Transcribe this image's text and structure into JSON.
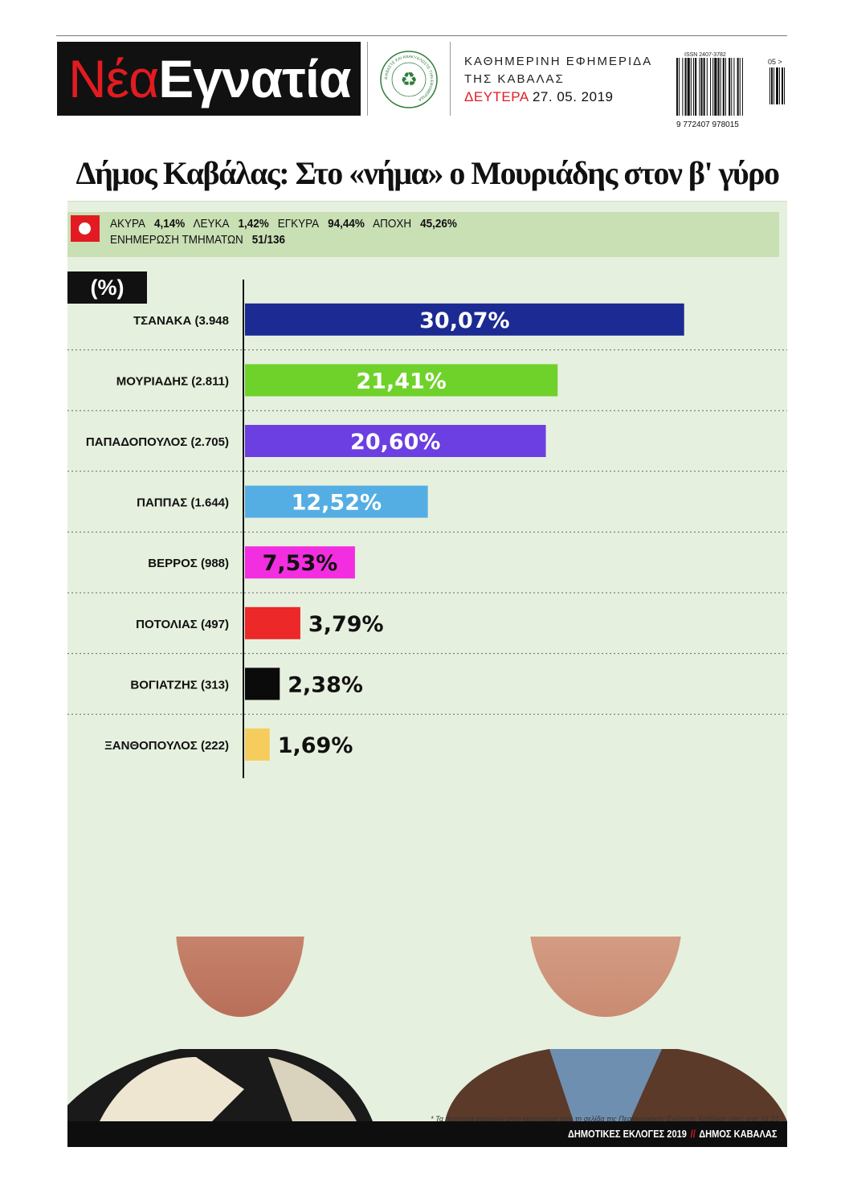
{
  "masthead": {
    "logo_part1": "Νέα",
    "logo_part2": "Εγνατία",
    "seal_text": "ΔΙΑΒΑΣΤΕ ΚΑΙ ΑΝΑΚΥΚΛΩΣΤΕ ΤΗΝ ΕΦΗΜΕΡΙΔΑ",
    "line1": "ΚΑΘΗΜΕΡΙΝΗ ΕΦΗΜΕΡΙΔΑ",
    "line2": "ΤΗΣ ΚΑΒΑΛΑΣ",
    "date_day": "ΔΕΥΤΕΡΑ",
    "date_value": "27. 05. 2019",
    "issn": "ISSN 2407-3782",
    "issue_code": "05 >",
    "barcode_number": "9 772407 978015",
    "accent_color": "#e21b22"
  },
  "headline": "Δήμος Καβάλας: Στο «νήμα» ο Μουριάδης στον β' γύρο",
  "stats": {
    "invalid_label": "ΑΚΥΡΑ",
    "invalid_value": "4,14%",
    "blank_label": "ΛΕΥΚΑ",
    "blank_value": "1,42%",
    "valid_label": "ΕΓΚΥΡΑ",
    "valid_value": "94,44%",
    "abstention_label": "ΑΠΟΧΗ",
    "abstention_value": "45,26%",
    "update_label": "ΕΝΗΜΕΡΩΣΗ ΤΜΗΜΑΤΩΝ",
    "update_value": "51/136"
  },
  "chart_data": {
    "type": "bar",
    "orientation": "horizontal",
    "unit_label": "(%)",
    "xlim": [
      0,
      33
    ],
    "grid": false,
    "categories": [
      "ΤΣΑΝΑΚΑ (3.948",
      "ΜΟΥΡΙΑΔΗΣ (2.811)",
      "ΠΑΠΑΔΟΠΟΥΛΟΣ (2.705)",
      "ΠΑΠΠΑΣ (1.644)",
      "ΒΕΡΡΟΣ (988)",
      "ΠΟΤΟΛΙΑΣ (497)",
      "ΒΟΓΙΑΤΖΗΣ (313)",
      "ΞΑΝΘΟΠΟΥΛΟΣ (222)"
    ],
    "values": [
      30.07,
      21.41,
      20.6,
      12.52,
      7.53,
      3.79,
      2.38,
      1.69
    ],
    "value_labels": [
      "30,07%",
      "21,41%",
      "20,60%",
      "12,52%",
      "7,53%",
      "3,79%",
      "2,38%",
      "1,69%"
    ],
    "colors": [
      "#1c2a93",
      "#6fd22a",
      "#6b3fe2",
      "#55aee3",
      "#f22ee0",
      "#ec2828",
      "#0b0b0b",
      "#f6cd5c"
    ],
    "label_colors": [
      "#ffffff",
      "#ffffff",
      "#ffffff",
      "#ffffff",
      "#111111",
      "#111111",
      "#111111",
      "#111111"
    ],
    "label_inside": [
      true,
      true,
      true,
      true,
      true,
      false,
      false,
      false
    ]
  },
  "footnote": "* Τα ποσοστά αφορούν στην καταγραφή από τη σελίδα της Περιφερειακής Ενότητας Καβάλας χθες, στις 01:21",
  "footer": {
    "left": "ΔΗΜΟΤΙΚΕΣ ΕΚΛΟΓΕΣ 2019",
    "separator": "//",
    "right": "ΔΗΜΟΣ ΚΑΒΑΛΑΣ"
  }
}
